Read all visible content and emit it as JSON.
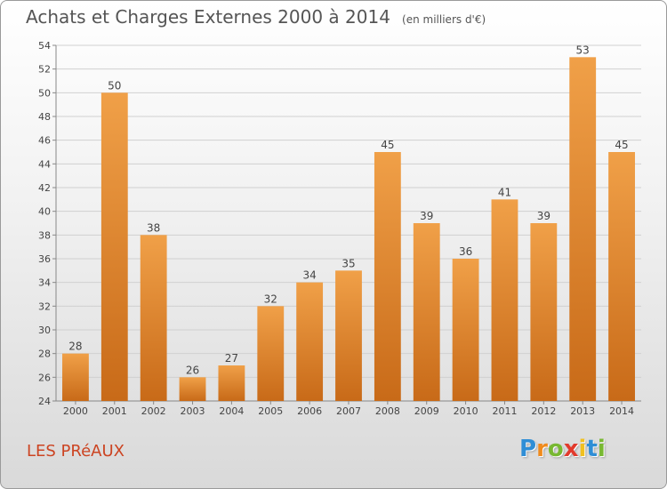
{
  "title": "Achats et Charges Externes 2000 à 2014",
  "subtitle": "(en milliers d'€)",
  "commune": "LES PRéAUX",
  "logo": {
    "letters": [
      "P",
      "r",
      "o",
      "x",
      "i",
      "t",
      "i"
    ],
    "colors": [
      "#2f8ed6",
      "#f08a1c",
      "#78b832",
      "#e23a2c",
      "#f0c020",
      "#2f8ed6",
      "#78b832"
    ]
  },
  "colors": {
    "bar": "#f0a048",
    "bar_dark": "#c86a18",
    "title": "#555555",
    "commune": "#cc4422"
  },
  "chart_data": {
    "type": "bar",
    "categories": [
      "2000",
      "2001",
      "2002",
      "2003",
      "2004",
      "2005",
      "2006",
      "2007",
      "2008",
      "2009",
      "2010",
      "2011",
      "2012",
      "2013",
      "2014"
    ],
    "values": [
      28,
      50,
      38,
      26,
      27,
      32,
      34,
      35,
      45,
      39,
      36,
      41,
      39,
      53,
      45
    ],
    "ylim": [
      24,
      54
    ],
    "yticks": [
      24,
      26,
      28,
      30,
      32,
      34,
      36,
      38,
      40,
      42,
      44,
      46,
      48,
      50,
      52,
      54
    ],
    "grid": true,
    "data_labels": true
  }
}
